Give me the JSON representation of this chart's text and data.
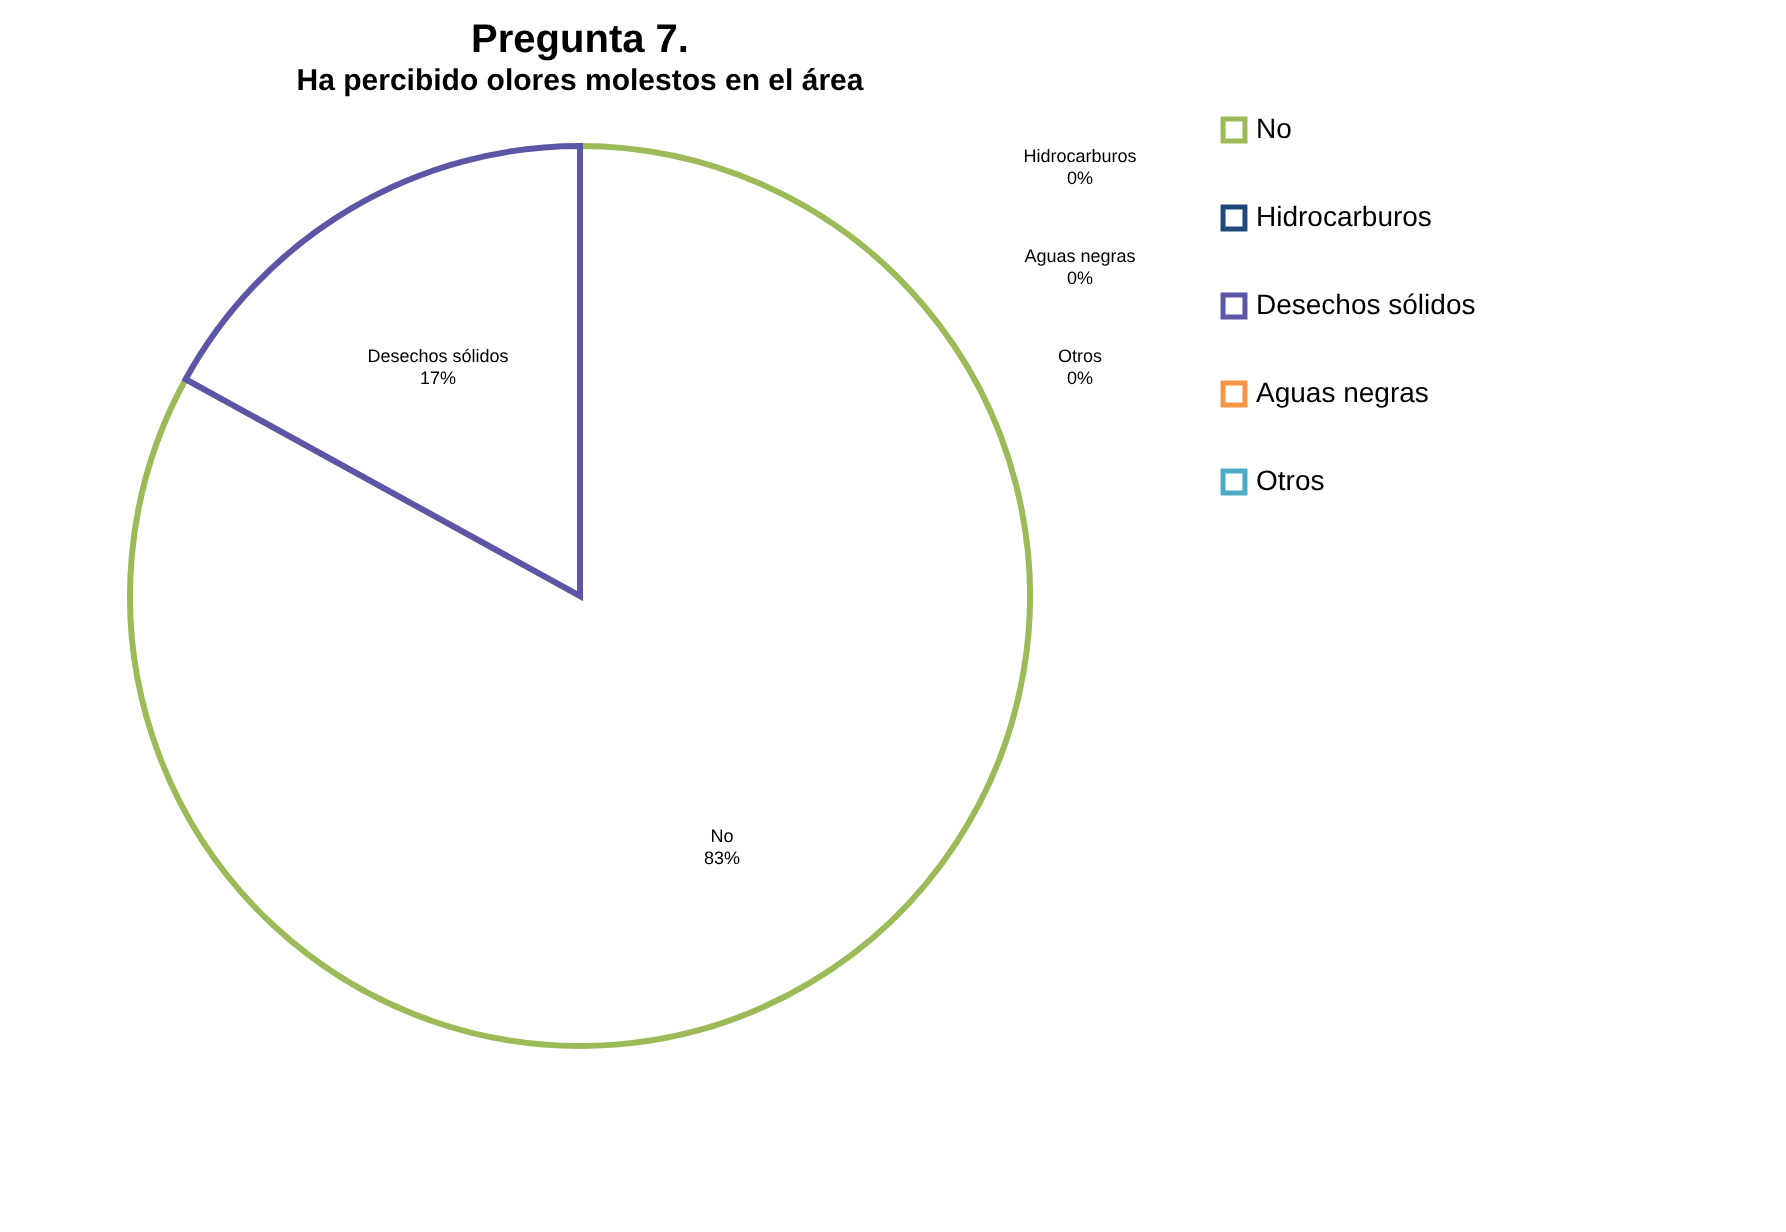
{
  "chart_data": {
    "type": "pie",
    "title": "Pregunta 7.",
    "subtitle": "Ha percibido olores molestos en el área",
    "categories": [
      "No",
      "Hidrocarburos",
      "Desechos sólidos",
      "Aguas negras",
      "Otros"
    ],
    "values": [
      83,
      0,
      17,
      0,
      0
    ],
    "value_labels": [
      "83%",
      "0%",
      "17%",
      "0%",
      "0%"
    ],
    "colors": [
      "#9bbb59",
      "#1f497d",
      "#5b57a6",
      "#f79646",
      "#4bacc6"
    ],
    "legend": "right"
  }
}
